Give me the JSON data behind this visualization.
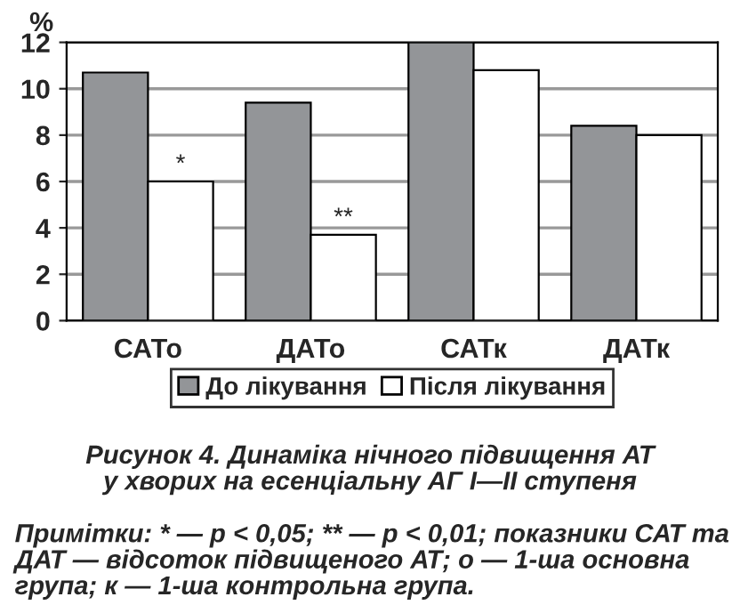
{
  "chart_data": {
    "type": "bar",
    "title": "Рисунок 4. Динаміка нічного підвищення АТ\nу хворих на есенціальну АГ I—II ступеня",
    "ylabel": "%",
    "categories": [
      "САТо",
      "ДАТо",
      "САТк",
      "ДАТк"
    ],
    "series": [
      {
        "name": "До лікування",
        "color": "#939598",
        "values": [
          10.7,
          9.4,
          12.0,
          8.4
        ]
      },
      {
        "name": "Після лікування",
        "color": "#ffffff",
        "values": [
          6.0,
          3.7,
          10.8,
          8.0
        ]
      }
    ],
    "ylim": [
      0,
      12
    ],
    "yticks": [
      0,
      2,
      4,
      6,
      8,
      10,
      12
    ],
    "grid": "y",
    "legend": "bottom",
    "annotations": [
      {
        "text": "*",
        "x": "САТо",
        "y": 6.0
      },
      {
        "text": "**",
        "x": "ДАТо",
        "y": 3.7
      },
      "Примітки: * — p < 0,05; ** — p < 0,01; показники САТ та ДАТ — відсоток підвищеного АТ; о — 1-ша основна група; к — 1-ша контрольна група."
    ]
  }
}
